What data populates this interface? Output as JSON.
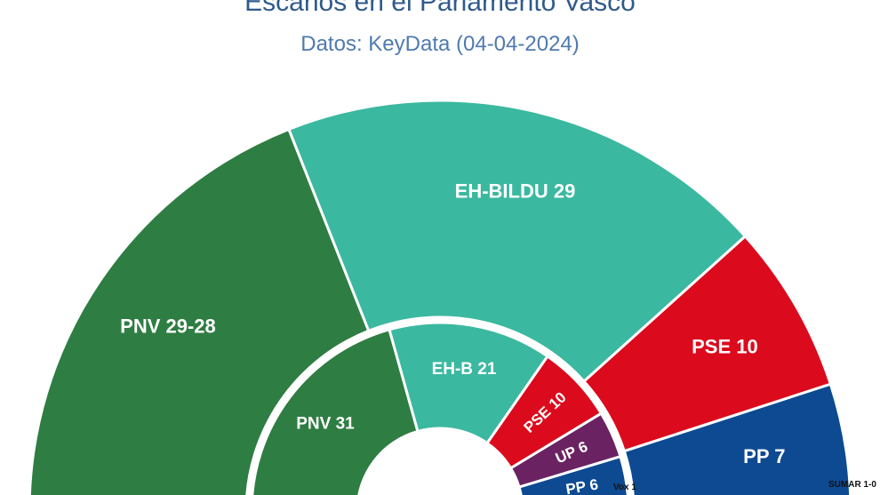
{
  "chart_data": [
    {
      "type": "pie",
      "ring": "outer",
      "slices": [
        {
          "label": "PNV 29-28",
          "value": 28.5,
          "color": "#2e7d42"
        },
        {
          "label": "EH-BILDU 29",
          "value": 29,
          "color": "#3bb8a0"
        },
        {
          "label": "PSE 10",
          "value": 10,
          "color": "#dc0a1d"
        },
        {
          "label": "PP 7",
          "value": 7,
          "color": "#0d4a92"
        },
        {
          "label": "SUMAR 1-0",
          "value": 0.5,
          "color": "#e5246a"
        }
      ]
    },
    {
      "type": "pie",
      "ring": "inner",
      "slices": [
        {
          "label": "PNV 31",
          "value": 31,
          "color": "#2e7d42"
        },
        {
          "label": "EH-B 21",
          "value": 21,
          "color": "#3bb8a0"
        },
        {
          "label": "PSE 10",
          "value": 10,
          "color": "#dc0a1d"
        },
        {
          "label": "UP 6",
          "value": 6,
          "color": "#6a2263"
        },
        {
          "label": "PP 6",
          "value": 6,
          "color": "#0d4a92"
        },
        {
          "label": "Vox 1",
          "value": 1,
          "color": "#5cb848"
        }
      ]
    }
  ],
  "title": "Escaños en el Parlamento Vasco",
  "subtitle": "Datos: KeyData (04-04-2024)"
}
